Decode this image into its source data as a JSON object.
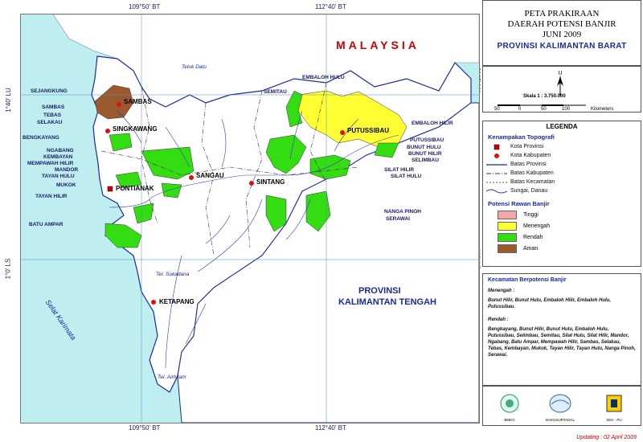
{
  "coords": {
    "top_left": "109°50' BT",
    "top_right": "112°40' BT",
    "bottom_left": "109°50' BT",
    "bottom_right": "112°40' BT",
    "left_top": "1°40' LU",
    "left_bottom": "1°0' LS",
    "right_top": "1°40' LU",
    "right_bottom": "1°0' LS"
  },
  "map": {
    "country_label": "MALAYSIA",
    "neighbor_province": [
      "PROVINSI",
      "KALIMANTAN TENGAH"
    ],
    "seas": [
      "Teluk Datu",
      "Tel. Sukadana",
      "Selat Karimata",
      "Tel. Airhitam"
    ],
    "cities": [
      "SAMBAS",
      "SINGKAWANG",
      "PONTIANAK",
      "SANGAU",
      "SINTANG",
      "PUTUSSIBAU",
      "KETAPANG"
    ],
    "districts": [
      "SEJANGKUNG",
      "SAMBAS",
      "TEBAS",
      "SELAKAU",
      "BENGKAYANG",
      "NGABANG",
      "KEMBAYAN",
      "MEMPAWAH HILIR",
      "MANDOR",
      "TAYAN HULU",
      "MUKOK",
      "TAYAN HILIR",
      "BATU AMPAR",
      "SEMITAU",
      "EMBALOH HULU",
      "EMBALOH HILIR",
      "PUTUSSIBAU",
      "BUNUT HULU",
      "BUNUT HILIR",
      "SELIMBAU",
      "SILAT HILIR",
      "SILAT HULU",
      "NANGA PINOH",
      "SERAWAI"
    ]
  },
  "title": {
    "line1": "PETA PRAKIRAAN",
    "line2": "DAERAH POTENSI BANJIR",
    "line3": "JUNI 2009",
    "province": "PROVINSI KALIMANTAN BARAT"
  },
  "scale": {
    "label": "Skala   1 : 3.750.000",
    "ticks": [
      "50",
      "0",
      "50",
      "100"
    ],
    "unit": "Kilometers"
  },
  "legend": {
    "title": "LEGENDA",
    "topo_title": "Kenampakan Topografi",
    "topo_items": [
      "Kota Provinsi",
      "Kota Kabupaten",
      "Batas Provinsi",
      "Batas Kabupaten",
      "Batas Kecamatan",
      "Sungai, Danau"
    ],
    "risk_title": "Potensi Rawan Banjir",
    "risk_items": [
      {
        "label": "Tinggi",
        "color": "#f4a7a7"
      },
      {
        "label": "Menengah",
        "color": "#ffff33"
      },
      {
        "label": "Rendah",
        "color": "#33dd11"
      },
      {
        "label": "Aman",
        "color": "#9b5a2e"
      }
    ]
  },
  "kecamatan": {
    "title": "Kecamatan Berpotensi Banjir",
    "menengah_label": "Menengah :",
    "menengah_text": "Bunut Hilir, Bunut Hulu, Embaloh Hilir, Embaloh Hulu, Putussibau.",
    "rendah_label": "Rendah :",
    "rendah_text": "Bengkayang, Bunut Hilir, Bunut Hulu, Embaloh Hulu, Putussibau, Selimbau, Semitau, Silat Hulu, Silat Hilir, Mandor, Ngabang, Batu Ampar, Mempawah Hilir, Sambas, Selakau, Tebas, Kembayan, Mukok, Tayan Hilir, Tayan Hulu, Nanga Pinoh, Serawai."
  },
  "logos": [
    "BMKG",
    "BAKOSURTANAL",
    "SDA - PU"
  ],
  "updating": "Updating : 02 April 2009",
  "colors": {
    "sea": "#bfeef0",
    "land": "#ffffff",
    "foreign": "#ffffff",
    "border_blue": "#1a2aa0",
    "river": "#2b3fb5"
  }
}
